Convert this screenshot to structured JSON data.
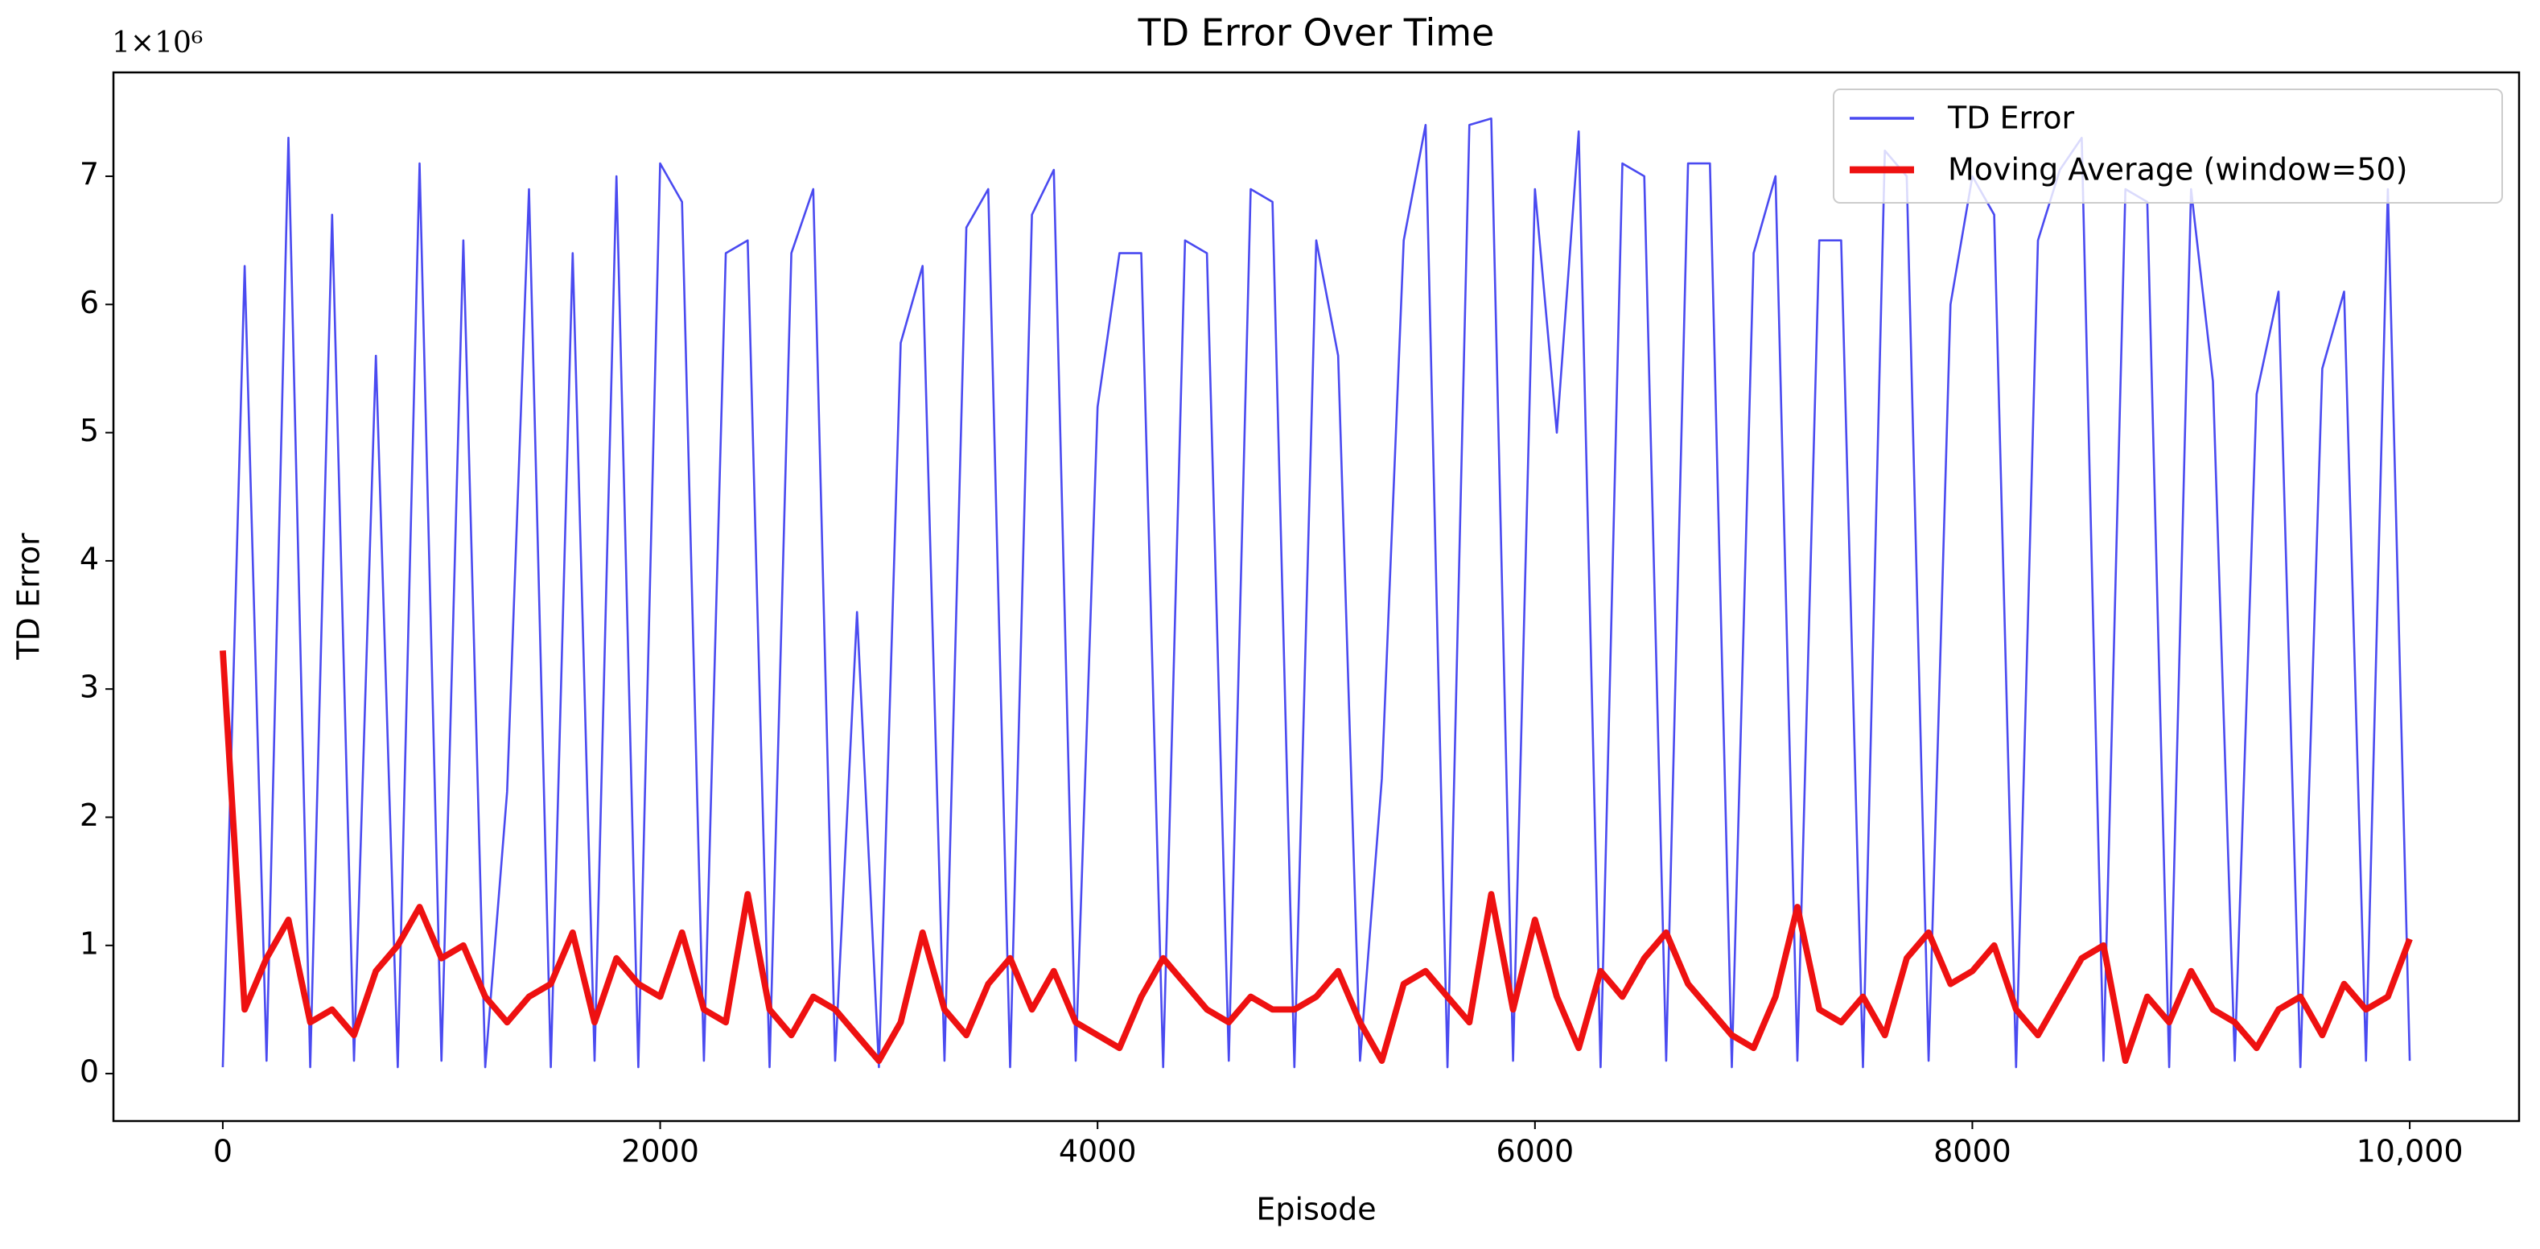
{
  "chart_data": {
    "type": "line",
    "title": "TD Error Over Time",
    "x_label": "Episode",
    "y_label": "TD Error",
    "y_offset_label": "1×10⁶",
    "x": [
      0,
      100,
      200,
      300,
      400,
      500,
      600,
      700,
      800,
      900,
      1000,
      1100,
      1200,
      1300,
      1400,
      1500,
      1600,
      1700,
      1800,
      1900,
      2000,
      2100,
      2200,
      2300,
      2400,
      2500,
      2600,
      2700,
      2800,
      2900,
      3000,
      3100,
      3200,
      3300,
      3400,
      3500,
      3600,
      3700,
      3800,
      3900,
      4000,
      4100,
      4200,
      4300,
      4400,
      4500,
      4600,
      4700,
      4800,
      4900,
      5000,
      5100,
      5200,
      5300,
      5400,
      5500,
      5600,
      5700,
      5800,
      5900,
      6000,
      6100,
      6200,
      6300,
      6400,
      6500,
      6600,
      6700,
      6800,
      6900,
      7000,
      7100,
      7200,
      7300,
      7400,
      7500,
      7600,
      7700,
      7800,
      7900,
      8000,
      8100,
      8200,
      8300,
      8400,
      8500,
      8600,
      8700,
      8800,
      8900,
      9000,
      9100,
      9200,
      9300,
      9400,
      9500,
      9600,
      9700,
      9800,
      9900,
      10000
    ],
    "series": [
      {
        "name": "TD Error",
        "color": "#4a4af0",
        "width": 1,
        "values": [
          0.05,
          6.3,
          0.1,
          7.3,
          0.05,
          6.7,
          0.1,
          5.6,
          0.05,
          7.1,
          0.1,
          6.5,
          0.05,
          2.2,
          6.9,
          0.05,
          6.4,
          0.1,
          7.0,
          0.05,
          7.1,
          6.8,
          0.1,
          6.4,
          6.5,
          0.05,
          6.4,
          6.9,
          0.1,
          3.6,
          0.05,
          5.7,
          6.3,
          0.1,
          6.6,
          6.9,
          0.05,
          6.7,
          7.05,
          0.1,
          5.2,
          6.4,
          6.4,
          0.05,
          6.5,
          6.4,
          0.1,
          6.9,
          6.8,
          0.05,
          6.5,
          5.6,
          0.1,
          2.3,
          6.5,
          7.4,
          0.05,
          7.4,
          7.45,
          0.1,
          6.9,
          5.0,
          7.35,
          0.05,
          7.1,
          7.0,
          0.1,
          7.1,
          7.1,
          0.05,
          6.4,
          7.0,
          0.1,
          6.5,
          6.5,
          0.05,
          7.2,
          7.0,
          0.1,
          6.0,
          7.0,
          6.7,
          0.05,
          6.5,
          7.05,
          7.3,
          0.1,
          6.9,
          6.8,
          0.05,
          6.9,
          5.4,
          0.1,
          5.3,
          6.1,
          0.05,
          5.5,
          6.1,
          0.1,
          6.9,
          0.1
        ]
      },
      {
        "name": "Moving Average (window=50)",
        "color": "#ee1111",
        "width": 3,
        "values": [
          3.3,
          0.5,
          0.9,
          1.2,
          0.4,
          0.5,
          0.3,
          0.8,
          1.0,
          1.3,
          0.9,
          1.0,
          0.6,
          0.4,
          0.6,
          0.7,
          1.1,
          0.4,
          0.9,
          0.7,
          0.6,
          1.1,
          0.5,
          0.4,
          1.4,
          0.5,
          0.3,
          0.6,
          0.5,
          0.3,
          0.1,
          0.4,
          1.1,
          0.5,
          0.3,
          0.7,
          0.9,
          0.5,
          0.8,
          0.4,
          0.3,
          0.2,
          0.6,
          0.9,
          0.7,
          0.5,
          0.4,
          0.6,
          0.5,
          0.5,
          0.6,
          0.8,
          0.4,
          0.1,
          0.7,
          0.8,
          0.6,
          0.4,
          1.4,
          0.5,
          1.2,
          0.6,
          0.2,
          0.8,
          0.6,
          0.9,
          1.1,
          0.7,
          0.5,
          0.3,
          0.2,
          0.6,
          1.3,
          0.5,
          0.4,
          0.6,
          0.3,
          0.9,
          1.1,
          0.7,
          0.8,
          1.0,
          0.5,
          0.3,
          0.6,
          0.9,
          1.0,
          0.1,
          0.6,
          0.4,
          0.8,
          0.5,
          0.4,
          0.2,
          0.5,
          0.6,
          0.3,
          0.7,
          0.5,
          0.6,
          1.05
        ]
      }
    ],
    "xlim": [
      -500,
      10500
    ],
    "ylim": [
      -0.37,
      7.81
    ],
    "xticks": [
      0,
      2000,
      4000,
      6000,
      8000,
      {
        "value": 10000,
        "label": "10,000"
      }
    ],
    "yticks": [
      0,
      1,
      2,
      3,
      4,
      5,
      6,
      7
    ],
    "grid": false,
    "legend": "upper right"
  }
}
